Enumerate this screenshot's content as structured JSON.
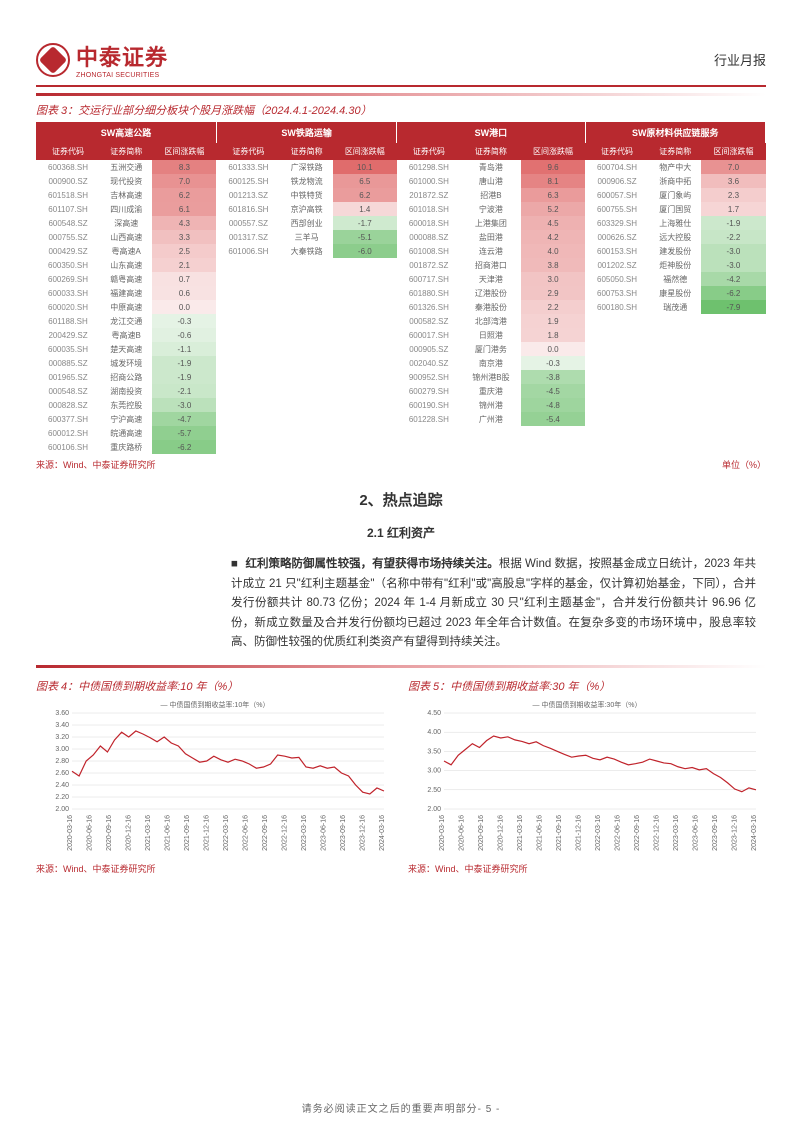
{
  "header": {
    "company_cn": "中泰证券",
    "company_en": "ZHONGTAI SECURITIES",
    "report_type": "行业月报"
  },
  "table3": {
    "title": "图表 3：交运行业部分细分板块个股月涨跌幅（2024.4.1-2024.4.30）",
    "source": "来源：Wind、中泰证券研究所",
    "unit": "单位（%）",
    "groups": [
      "SW高速公路",
      "SW铁路运输",
      "SW港口",
      "SW原材料供应链服务"
    ],
    "subheaders": [
      "证券代码",
      "证券简称",
      "区间涨跌幅"
    ],
    "color_scale": {
      "pos_max": "#e06c6c",
      "pos_mid": "#f0b0b0",
      "pos_low": "#faeaea",
      "neg_low": "#eaf5ea",
      "neg_mid": "#b0dcb0",
      "neg_max": "#6cc06c"
    },
    "data": {
      "g0": [
        [
          "600368.SH",
          "五洲交通",
          8.3
        ],
        [
          "000900.SZ",
          "现代投资",
          7.0
        ],
        [
          "601518.SH",
          "吉林高速",
          6.2
        ],
        [
          "601107.SH",
          "四川成渝",
          6.1
        ],
        [
          "600548.SZ",
          "深高速",
          4.3
        ],
        [
          "000755.SZ",
          "山西高速",
          3.3
        ],
        [
          "000429.SZ",
          "粤高速A",
          2.5
        ],
        [
          "600350.SH",
          "山东高速",
          2.1
        ],
        [
          "600269.SH",
          "赣粤高速",
          0.7
        ],
        [
          "600033.SH",
          "福建高速",
          0.6
        ],
        [
          "600020.SH",
          "中原高速",
          0.0
        ],
        [
          "601188.SH",
          "龙江交通",
          -0.3
        ],
        [
          "200429.SZ",
          "粤高速B",
          -0.6
        ],
        [
          "600035.SH",
          "楚天高速",
          -1.1
        ],
        [
          "000885.SZ",
          "城发环境",
          -1.9
        ],
        [
          "001965.SZ",
          "招商公路",
          -1.9
        ],
        [
          "000548.SZ",
          "湖南投资",
          -2.1
        ],
        [
          "000828.SZ",
          "东莞控股",
          -3.0
        ],
        [
          "600377.SH",
          "宁沪高速",
          -4.7
        ],
        [
          "600012.SH",
          "皖通高速",
          -5.7
        ],
        [
          "600106.SH",
          "重庆路桥",
          -6.2
        ]
      ],
      "g1": [
        [
          "601333.SH",
          "广深铁路",
          10.1
        ],
        [
          "600125.SH",
          "铁龙物流",
          6.5
        ],
        [
          "001213.SZ",
          "中铁特货",
          6.2
        ],
        [
          "601816.SH",
          "京沪高铁",
          1.4
        ],
        [
          "000557.SZ",
          "西部创业",
          -1.7
        ],
        [
          "001317.SZ",
          "三羊马",
          -5.1
        ],
        [
          "601006.SH",
          "大秦铁路",
          -6.0
        ]
      ],
      "g2": [
        [
          "601298.SH",
          "青岛港",
          9.6
        ],
        [
          "601000.SH",
          "唐山港",
          8.1
        ],
        [
          "201872.SZ",
          "招港B",
          6.3
        ],
        [
          "601018.SH",
          "宁波港",
          5.2
        ],
        [
          "600018.SH",
          "上港集团",
          4.5
        ],
        [
          "000088.SZ",
          "盐田港",
          4.2
        ],
        [
          "601008.SH",
          "连云港",
          4.0
        ],
        [
          "001872.SZ",
          "招商港口",
          3.8
        ],
        [
          "600717.SH",
          "天津港",
          3.0
        ],
        [
          "601880.SH",
          "辽港股份",
          2.9
        ],
        [
          "601326.SH",
          "秦港股份",
          2.2
        ],
        [
          "000582.SZ",
          "北部湾港",
          1.9
        ],
        [
          "600017.SH",
          "日照港",
          1.8
        ],
        [
          "000905.SZ",
          "厦门港务",
          0.0
        ],
        [
          "002040.SZ",
          "南京港",
          -0.3
        ],
        [
          "900952.SH",
          "锦州港B股",
          -3.8
        ],
        [
          "600279.SH",
          "重庆港",
          -4.5
        ],
        [
          "600190.SH",
          "锦州港",
          -4.8
        ],
        [
          "601228.SH",
          "广州港",
          -5.4
        ]
      ],
      "g3": [
        [
          "600704.SH",
          "物产中大",
          7.0
        ],
        [
          "000906.SZ",
          "浙商中拓",
          3.6
        ],
        [
          "600057.SH",
          "厦门象屿",
          2.3
        ],
        [
          "600755.SH",
          "厦门国贸",
          1.7
        ],
        [
          "603329.SH",
          "上海雅仕",
          -1.9
        ],
        [
          "000626.SZ",
          "远大控股",
          -2.2
        ],
        [
          "600153.SH",
          "建发股份",
          -3.0
        ],
        [
          "001202.SZ",
          "炬神股份",
          -3.0
        ],
        [
          "605050.SH",
          "福然德",
          -4.2
        ],
        [
          "600753.SH",
          "康星股份",
          -6.2
        ],
        [
          "600180.SH",
          "瑞茂通",
          -7.9
        ]
      ]
    }
  },
  "section2": {
    "title": "2、热点追踪",
    "sub1": {
      "title": "2.1 红利资产",
      "bullet": "■",
      "bold": "红利策略防御属性较强，有望获得市场持续关注。",
      "text": "根据 Wind 数据，按照基金成立日统计，2023 年共计成立 21 只\"红利主题基金\"（名称中带有\"红利\"或\"高股息\"字样的基金，仅计算初始基金，下同），合并发行份额共计 80.73 亿份；2024 年 1-4 月新成立 30 只\"红利主题基金\"，合并发行份额共计 96.96 亿份，新成立数量及合并发行份额均已超过 2023 年全年合计数值。在复杂多变的市场环境中，股息率较高、防御性较强的优质红利类资产有望得到持续关注。"
    }
  },
  "chart4": {
    "title": "图表 4：中债国债到期收益率:10 年（%）",
    "legend": "中债国债到期收益率:10年（%）",
    "source": "来源：Wind、中泰证券研究所",
    "ylim": [
      2.0,
      3.6
    ],
    "ytick_step": 0.2,
    "y_ticks": [
      "3.60",
      "3.40",
      "3.20",
      "3.00",
      "2.80",
      "2.60",
      "2.40",
      "2.20",
      "2.00"
    ],
    "x_labels": [
      "2020-03-16",
      "2020-06-16",
      "2020-09-16",
      "2020-12-16",
      "2021-03-16",
      "2021-06-16",
      "2021-09-16",
      "2021-12-16",
      "2022-03-16",
      "2022-06-16",
      "2022-09-16",
      "2022-12-16",
      "2023-03-16",
      "2023-06-16",
      "2023-09-16",
      "2023-12-16",
      "2024-03-16"
    ],
    "line_color": "#c0232b",
    "grid_color": "#d8d8d8",
    "background": "#ffffff",
    "label_fontsize": 7,
    "data": [
      2.63,
      2.55,
      2.8,
      2.9,
      3.05,
      2.95,
      3.15,
      3.28,
      3.2,
      3.3,
      3.25,
      3.19,
      3.12,
      3.2,
      3.1,
      3.05,
      2.92,
      2.85,
      2.78,
      2.8,
      2.88,
      2.82,
      2.78,
      2.83,
      2.8,
      2.75,
      2.68,
      2.7,
      2.75,
      2.9,
      2.88,
      2.85,
      2.86,
      2.7,
      2.68,
      2.72,
      2.68,
      2.7,
      2.6,
      2.55,
      2.4,
      2.28,
      2.25,
      2.35,
      2.3
    ]
  },
  "chart5": {
    "title": "图表 5：中债国债到期收益率:30 年（%）",
    "legend": "中债国债到期收益率:30年（%）",
    "source": "来源：Wind、中泰证券研究所",
    "ylim": [
      2.0,
      4.5
    ],
    "ytick_step": 0.5,
    "y_ticks": [
      "4.50",
      "4.00",
      "3.50",
      "3.00",
      "2.50",
      "2.00"
    ],
    "x_labels": [
      "2020-03-16",
      "2020-06-16",
      "2020-09-16",
      "2020-12-16",
      "2021-03-16",
      "2021-06-16",
      "2021-09-16",
      "2021-12-16",
      "2022-03-16",
      "2022-06-16",
      "2022-09-16",
      "2022-12-16",
      "2023-03-16",
      "2023-06-16",
      "2023-09-16",
      "2023-12-16",
      "2024-03-16"
    ],
    "line_color": "#c0232b",
    "grid_color": "#d8d8d8",
    "background": "#ffffff",
    "label_fontsize": 7,
    "data": [
      3.25,
      3.15,
      3.4,
      3.55,
      3.7,
      3.6,
      3.78,
      3.9,
      3.85,
      3.88,
      3.8,
      3.76,
      3.7,
      3.75,
      3.65,
      3.58,
      3.5,
      3.42,
      3.35,
      3.38,
      3.4,
      3.32,
      3.28,
      3.35,
      3.3,
      3.22,
      3.15,
      3.18,
      3.22,
      3.3,
      3.25,
      3.2,
      3.18,
      3.1,
      3.05,
      3.08,
      3.02,
      3.05,
      2.92,
      2.82,
      2.68,
      2.52,
      2.45,
      2.55,
      2.5
    ]
  },
  "footer": "请务必阅读正文之后的重要声明部分- 5 -"
}
